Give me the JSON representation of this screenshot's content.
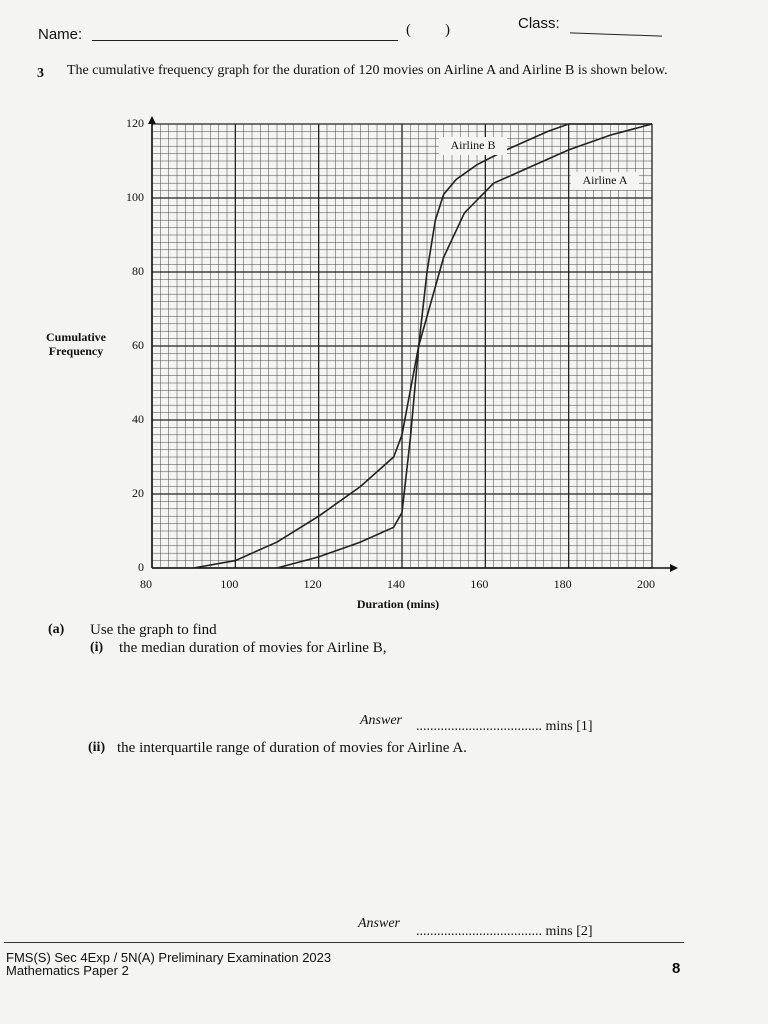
{
  "header": {
    "name_label": "Name:",
    "open_paren": "(",
    "close_paren": ")",
    "class_label": "Class:"
  },
  "question": {
    "number": "3",
    "text": "The cumulative frequency graph for the duration of 120 movies on Airline A and Airline B is shown below."
  },
  "chart_data": {
    "type": "line",
    "xlabel": "Duration (mins)",
    "ylabel": "Cumulative Frequency",
    "xlim": [
      80,
      200
    ],
    "xticks": [
      80,
      100,
      120,
      140,
      160,
      180,
      200
    ],
    "ylim": [
      0,
      120
    ],
    "yticks": [
      0,
      20,
      40,
      60,
      80,
      100,
      120
    ],
    "grid": true,
    "series": [
      {
        "name": "Airline A",
        "color": "#222222",
        "x": [
          90,
          100,
          110,
          120,
          130,
          138,
          140,
          144,
          147,
          150,
          155,
          162,
          170,
          180,
          190,
          200
        ],
        "values": [
          0,
          2,
          7,
          14,
          22,
          30,
          36,
          60,
          72,
          84,
          96,
          104,
          108,
          113,
          117,
          120
        ]
      },
      {
        "name": "Airline B",
        "color": "#222222",
        "x": [
          110,
          120,
          130,
          138,
          140,
          142,
          144,
          146,
          148,
          150,
          153,
          158,
          165,
          175,
          180,
          200
        ],
        "values": [
          0,
          3,
          7,
          11,
          15,
          35,
          60,
          80,
          94,
          101,
          105,
          109,
          113,
          118,
          120,
          120
        ]
      }
    ]
  },
  "parts": {
    "label": "(a)",
    "intro": "Use the graph to find",
    "items": [
      {
        "label": "(i)",
        "text": "the median duration of movies for Airline B,",
        "answer_label": "Answer",
        "answer_line": ".................................... mins [1]"
      },
      {
        "label": "(ii)",
        "text": "the interquartile range of duration of movies for Airline A.",
        "answer_label": "Answer",
        "answer_line": ".................................... mins [2]"
      }
    ]
  },
  "footer": {
    "line1": "FMS(S) Sec 4Exp / 5N(A) Preliminary Examination 2023",
    "line2": "Mathematics Paper 2",
    "page": "8"
  }
}
